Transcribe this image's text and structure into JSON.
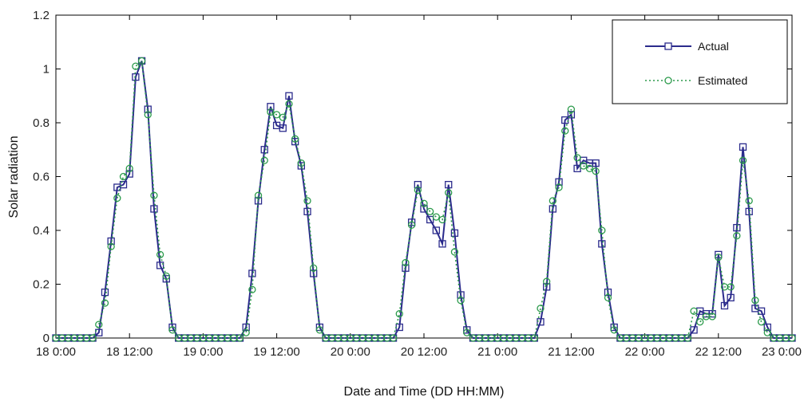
{
  "chart_data": {
    "type": "line",
    "title": "",
    "xlabel": "Date and Time (DD HH:MM)",
    "ylabel": "Solar radiation",
    "ylim": [
      0,
      1.2
    ],
    "yticks": [
      "0",
      "0.2",
      "0.4",
      "0.6",
      "0.8",
      "1",
      "1.2"
    ],
    "xlim": [
      "18 0:00",
      "23 0:00"
    ],
    "xticks": [
      "18 0:00",
      "18 12:00",
      "19 0:00",
      "19 12:00",
      "20 0:00",
      "20 12:00",
      "21 0:00",
      "21 12:00",
      "22 0:00",
      "22 12:00",
      "23 0:00"
    ],
    "x_step_hours": 1,
    "legend_position": "top-right",
    "grid": false,
    "series": [
      {
        "name": "Actual",
        "color": "#2b2b8c",
        "marker": "square",
        "line_style": "solid",
        "values": [
          0,
          0,
          0,
          0,
          0,
          0,
          0,
          0.02,
          0.17,
          0.36,
          0.56,
          0.57,
          0.61,
          0.97,
          1.03,
          0.85,
          0.48,
          0.27,
          0.22,
          0.04,
          0,
          0,
          0,
          0,
          0,
          0,
          0,
          0,
          0,
          0,
          0,
          0.04,
          0.24,
          0.51,
          0.7,
          0.86,
          0.79,
          0.78,
          0.9,
          0.73,
          0.64,
          0.47,
          0.24,
          0.04,
          0,
          0,
          0,
          0,
          0,
          0,
          0,
          0,
          0,
          0,
          0,
          0,
          0.04,
          0.26,
          0.43,
          0.57,
          0.48,
          0.44,
          0.4,
          0.35,
          0.57,
          0.39,
          0.16,
          0.03,
          0,
          0,
          0,
          0,
          0,
          0,
          0,
          0,
          0,
          0,
          0,
          0.06,
          0.19,
          0.48,
          0.58,
          0.81,
          0.83,
          0.63,
          0.66,
          0.65,
          0.65,
          0.35,
          0.17,
          0.04,
          0,
          0,
          0,
          0,
          0,
          0,
          0,
          0,
          0,
          0,
          0,
          0,
          0.03,
          0.1,
          0.09,
          0.09,
          0.31,
          0.12,
          0.15,
          0.41,
          0.71,
          0.47,
          0.11,
          0.1,
          0.04,
          0,
          0,
          0,
          0
        ]
      },
      {
        "name": "Estimated",
        "color": "#2a9a4a",
        "marker": "circle",
        "line_style": "dotted",
        "values": [
          0,
          0,
          0,
          0,
          0,
          0,
          0,
          0.05,
          0.13,
          0.34,
          0.52,
          0.6,
          0.63,
          1.01,
          1.03,
          0.83,
          0.53,
          0.31,
          0.23,
          0.03,
          0,
          0,
          0,
          0,
          0,
          0,
          0,
          0,
          0,
          0,
          0,
          0.02,
          0.18,
          0.53,
          0.66,
          0.84,
          0.83,
          0.82,
          0.87,
          0.74,
          0.65,
          0.51,
          0.26,
          0.03,
          0,
          0,
          0,
          0,
          0,
          0,
          0,
          0,
          0,
          0,
          0,
          0,
          0.09,
          0.28,
          0.42,
          0.55,
          0.5,
          0.47,
          0.45,
          0.44,
          0.54,
          0.32,
          0.14,
          0.02,
          0,
          0,
          0,
          0,
          0,
          0,
          0,
          0,
          0,
          0,
          0,
          0.11,
          0.21,
          0.51,
          0.56,
          0.77,
          0.85,
          0.67,
          0.64,
          0.63,
          0.62,
          0.4,
          0.15,
          0.03,
          0,
          0,
          0,
          0,
          0,
          0,
          0,
          0,
          0,
          0,
          0,
          0,
          0.1,
          0.06,
          0.08,
          0.08,
          0.3,
          0.19,
          0.19,
          0.38,
          0.66,
          0.51,
          0.14,
          0.06,
          0.02,
          0,
          0,
          0,
          0
        ]
      }
    ]
  }
}
